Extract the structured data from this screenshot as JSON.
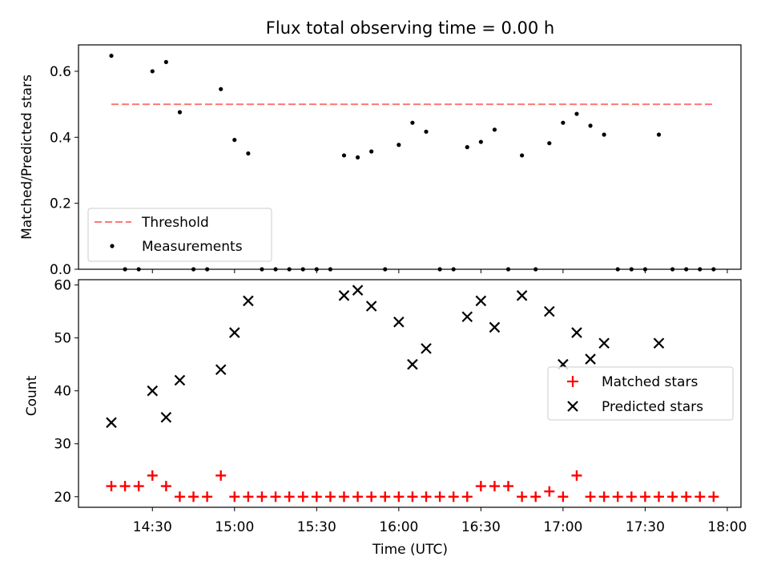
{
  "chart_data": [
    {
      "type": "scatter",
      "title": "Flux total observing time = 0.00 h",
      "xlabel": "",
      "ylabel": "Matched/Predicted stars",
      "xlim": [
        "14:03",
        "18:05"
      ],
      "ylim": [
        0,
        0.68
      ],
      "yticks": [
        "0.0",
        "0.2",
        "0.4",
        "0.6"
      ],
      "ytick_values": [
        0,
        0.2,
        0.4,
        0.6
      ],
      "xticks_values": [
        "14:30",
        "15:00",
        "15:30",
        "16:00",
        "16:30",
        "17:00",
        "17:30",
        "18:00"
      ],
      "grid": false,
      "legend_position": "lower-left",
      "threshold": {
        "name": "Threshold",
        "value": 0.5,
        "x": [
          "14:15",
          "17:55"
        ],
        "color": "#ff7777"
      },
      "series": [
        {
          "name": "Measurements",
          "marker": "dot",
          "color": "#000000",
          "points": [
            [
              "14:15",
              0.647
            ],
            [
              "14:20",
              0.0
            ],
            [
              "14:25",
              0.0
            ],
            [
              "14:30",
              0.6
            ],
            [
              "14:35",
              0.628
            ],
            [
              "14:40",
              0.476
            ],
            [
              "14:45",
              0.0
            ],
            [
              "14:50",
              0.0
            ],
            [
              "14:55",
              0.546
            ],
            [
              "15:00",
              0.392
            ],
            [
              "15:05",
              0.351
            ],
            [
              "15:10",
              0.0
            ],
            [
              "15:15",
              0.0
            ],
            [
              "15:20",
              0.0
            ],
            [
              "15:25",
              0.0
            ],
            [
              "15:30",
              0.0
            ],
            [
              "15:35",
              0.0
            ],
            [
              "15:40",
              0.345
            ],
            [
              "15:45",
              0.339
            ],
            [
              "15:50",
              0.357
            ],
            [
              "15:55",
              0.0
            ],
            [
              "16:00",
              0.377
            ],
            [
              "16:05",
              0.444
            ],
            [
              "16:10",
              0.417
            ],
            [
              "16:15",
              0.0
            ],
            [
              "16:20",
              0.0
            ],
            [
              "16:25",
              0.37
            ],
            [
              "16:30",
              0.386
            ],
            [
              "16:35",
              0.423
            ],
            [
              "16:40",
              0.0
            ],
            [
              "16:45",
              0.345
            ],
            [
              "16:50",
              0.0
            ],
            [
              "16:55",
              0.382
            ],
            [
              "17:00",
              0.444
            ],
            [
              "17:05",
              0.471
            ],
            [
              "17:10",
              0.435
            ],
            [
              "17:15",
              0.408
            ],
            [
              "17:20",
              0.0
            ],
            [
              "17:25",
              0.0
            ],
            [
              "17:30",
              0.0
            ],
            [
              "17:35",
              0.408
            ],
            [
              "17:40",
              0.0
            ],
            [
              "17:45",
              0.0
            ],
            [
              "17:50",
              0.0
            ],
            [
              "17:55",
              0.0
            ]
          ]
        }
      ]
    },
    {
      "type": "scatter",
      "title": "",
      "xlabel": "Time (UTC)",
      "ylabel": "Count",
      "xlim": [
        "14:03",
        "18:05"
      ],
      "ylim": [
        18,
        61
      ],
      "yticks": [
        "20",
        "30",
        "40",
        "50",
        "60"
      ],
      "ytick_values": [
        20,
        30,
        40,
        50,
        60
      ],
      "xticks": [
        "14:30",
        "15:00",
        "15:30",
        "16:00",
        "16:30",
        "17:00",
        "17:30",
        "18:00"
      ],
      "grid": false,
      "legend_position": "center-right",
      "series": [
        {
          "name": "Matched stars",
          "marker": "plus",
          "color": "#ff0000",
          "points": [
            [
              "14:15",
              22
            ],
            [
              "14:20",
              22
            ],
            [
              "14:25",
              22
            ],
            [
              "14:30",
              24
            ],
            [
              "14:35",
              22
            ],
            [
              "14:40",
              20
            ],
            [
              "14:45",
              20
            ],
            [
              "14:50",
              20
            ],
            [
              "14:55",
              24
            ],
            [
              "15:00",
              20
            ],
            [
              "15:05",
              20
            ],
            [
              "15:10",
              20
            ],
            [
              "15:15",
              20
            ],
            [
              "15:20",
              20
            ],
            [
              "15:25",
              20
            ],
            [
              "15:30",
              20
            ],
            [
              "15:35",
              20
            ],
            [
              "15:40",
              20
            ],
            [
              "15:45",
              20
            ],
            [
              "15:50",
              20
            ],
            [
              "15:55",
              20
            ],
            [
              "16:00",
              20
            ],
            [
              "16:05",
              20
            ],
            [
              "16:10",
              20
            ],
            [
              "16:15",
              20
            ],
            [
              "16:20",
              20
            ],
            [
              "16:25",
              20
            ],
            [
              "16:30",
              22
            ],
            [
              "16:35",
              22
            ],
            [
              "16:40",
              22
            ],
            [
              "16:45",
              20
            ],
            [
              "16:50",
              20
            ],
            [
              "16:55",
              21
            ],
            [
              "17:00",
              20
            ],
            [
              "17:05",
              24
            ],
            [
              "17:10",
              20
            ],
            [
              "17:15",
              20
            ],
            [
              "17:20",
              20
            ],
            [
              "17:25",
              20
            ],
            [
              "17:30",
              20
            ],
            [
              "17:35",
              20
            ],
            [
              "17:40",
              20
            ],
            [
              "17:45",
              20
            ],
            [
              "17:50",
              20
            ],
            [
              "17:55",
              20
            ]
          ]
        },
        {
          "name": "Predicted stars",
          "marker": "x",
          "color": "#000000",
          "points": [
            [
              "14:15",
              34
            ],
            [
              "14:30",
              40
            ],
            [
              "14:35",
              35
            ],
            [
              "14:40",
              42
            ],
            [
              "14:55",
              44
            ],
            [
              "15:00",
              51
            ],
            [
              "15:05",
              57
            ],
            [
              "15:40",
              58
            ],
            [
              "15:45",
              59
            ],
            [
              "15:50",
              56
            ],
            [
              "16:00",
              53
            ],
            [
              "16:05",
              45
            ],
            [
              "16:10",
              48
            ],
            [
              "16:25",
              54
            ],
            [
              "16:30",
              57
            ],
            [
              "16:35",
              52
            ],
            [
              "16:45",
              58
            ],
            [
              "16:55",
              55
            ],
            [
              "17:00",
              45
            ],
            [
              "17:05",
              51
            ],
            [
              "17:10",
              46
            ],
            [
              "17:15",
              49
            ],
            [
              "17:35",
              49
            ]
          ]
        }
      ]
    }
  ]
}
